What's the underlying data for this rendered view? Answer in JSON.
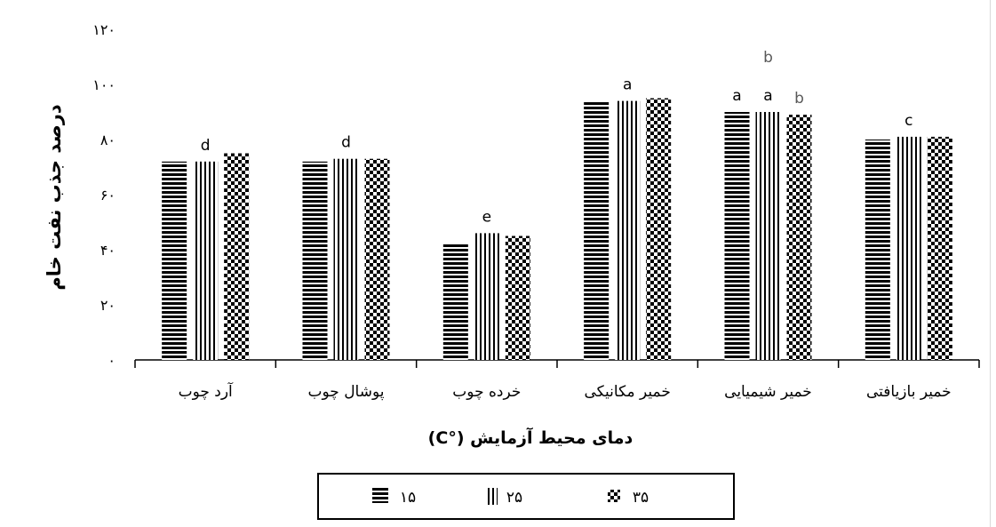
{
  "chart_data": {
    "type": "bar",
    "xlabel": "دمای محیط آزمایش (°C)",
    "ylabel": "درصد جذب نفت خام",
    "ylim": [
      0,
      120
    ],
    "ytick_values": [
      0,
      20,
      40,
      60,
      80,
      100,
      120
    ],
    "ytick_labels": [
      "۰",
      "۲۰",
      "۴۰",
      "۶۰",
      "۸۰",
      "۱۰۰",
      "۱۲۰"
    ],
    "categories": [
      "آرد چوب",
      "پوشال چوب",
      "خرده چوب",
      "خمیر مکانیکی",
      "خمیر شیمیایی",
      "خمیر بازیافتی"
    ],
    "series": [
      {
        "name": "۱۵",
        "pattern": "horizontal",
        "values": [
          72,
          72,
          42,
          94,
          90,
          80
        ]
      },
      {
        "name": "۲۵",
        "pattern": "vertical",
        "values": [
          72,
          73,
          46,
          94,
          90,
          81
        ]
      },
      {
        "name": "۳۵",
        "pattern": "checker",
        "values": [
          75,
          73,
          45,
          95,
          89,
          81
        ]
      }
    ],
    "annotations": [
      {
        "category_index": 0,
        "series_index": 1,
        "text": "d"
      },
      {
        "category_index": 1,
        "series_index": 1,
        "text": "d"
      },
      {
        "category_index": 2,
        "series_index": 1,
        "text": "e"
      },
      {
        "category_index": 3,
        "series_index": 1,
        "text": "a"
      },
      {
        "category_index": 4,
        "series_index": 0,
        "text": "a"
      },
      {
        "category_index": 4,
        "series_index": 1,
        "text": "a"
      },
      {
        "category_index": 4,
        "series_index": 2,
        "text": "b"
      },
      {
        "category_index": 4,
        "series_index": 1,
        "text": "b",
        "stacked": true
      },
      {
        "category_index": 5,
        "series_index": 1,
        "text": "c"
      }
    ],
    "legend_position": "bottom",
    "grid": false,
    "colors": {
      "bar": "#000000",
      "background": "#ffffff",
      "annotation_b": "#595959"
    }
  }
}
